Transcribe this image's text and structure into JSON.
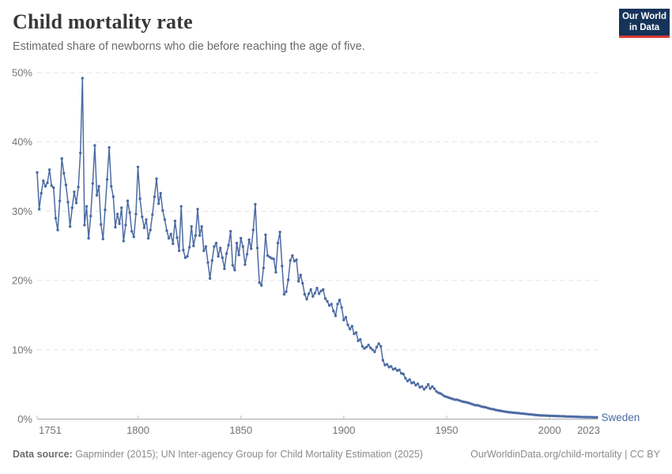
{
  "header": {
    "title": "Child mortality rate",
    "subtitle": "Estimated share of newborns who die before reaching the age of five."
  },
  "logo": {
    "line1": "Our World",
    "line2": "in Data",
    "bg_color": "#16335a",
    "accent_color": "#d93a35"
  },
  "chart_data": {
    "type": "line",
    "title": "Child mortality rate",
    "entity": "Sweden",
    "line_color": "#4c6ba3",
    "marker": "dot",
    "grid": "horizontal-dashed",
    "series_label_position": "end-of-line",
    "x_start_year": 1751,
    "x_end_year": 2023,
    "x_frequency": "annual",
    "xticks": [
      1751,
      1800,
      1850,
      1900,
      1950,
      2000,
      2023
    ],
    "ylim": [
      0,
      50
    ],
    "yticks": [
      {
        "value": 0,
        "label": "0%"
      },
      {
        "value": 10,
        "label": "10%"
      },
      {
        "value": 20,
        "label": "20%"
      },
      {
        "value": 30,
        "label": "30%"
      },
      {
        "value": 40,
        "label": "40%"
      },
      {
        "value": 50,
        "label": "50%"
      }
    ],
    "values": [
      35.6,
      30.3,
      32.6,
      34.4,
      33.6,
      34.1,
      36,
      33.7,
      33.4,
      29,
      27.3,
      31.5,
      37.6,
      35.5,
      33.8,
      31.3,
      27.8,
      30.5,
      32.8,
      31.2,
      33.5,
      38.4,
      49.2,
      28,
      30.7,
      26.1,
      29.3,
      34,
      39.5,
      32.3,
      33.6,
      28.1,
      26,
      30.2,
      34.6,
      39.2,
      33.6,
      32.1,
      27.7,
      29.6,
      28.2,
      30.5,
      25.7,
      28,
      31.5,
      29.8,
      27.1,
      26.3,
      29.6,
      36.4,
      31.8,
      29.2,
      27.6,
      28.8,
      26.1,
      27.3,
      29.5,
      32.1,
      34.7,
      31.1,
      32.6,
      30.1,
      28.8,
      27.2,
      26.1,
      26.7,
      25.3,
      28.6,
      26.2,
      24.3,
      30.7,
      24.4,
      23.3,
      23.5,
      24.8,
      27.8,
      25,
      26.5,
      30.3,
      26.5,
      27.8,
      24.3,
      24.9,
      22.6,
      20.3,
      22.9,
      24.9,
      25.4,
      23.5,
      24.7,
      23.3,
      21.7,
      23.9,
      25.1,
      27.1,
      22.2,
      21.5,
      25.4,
      23.7,
      26.1,
      24.9,
      22.3,
      23.8,
      25.9,
      24.6,
      27.3,
      31,
      24.7,
      19.7,
      19.3,
      21.8,
      26.6,
      23.6,
      23.4,
      23.2,
      23.1,
      21.2,
      25.4,
      27,
      22.1,
      18,
      18.4,
      20.1,
      22.9,
      23.6,
      22.8,
      23,
      19.9,
      20.8,
      19.6,
      18,
      17.3,
      18.1,
      18.7,
      17.7,
      18.2,
      18.9,
      18.1,
      18.5,
      18.7,
      17.4,
      17,
      16.4,
      16.6,
      15.6,
      14.9,
      16.6,
      17.2,
      16.1,
      14.3,
      14.7,
      13.6,
      13,
      13.4,
      12.3,
      12.5,
      11.3,
      11.5,
      10.5,
      10.2,
      10.4,
      10.7,
      10.3,
      10,
      9.7,
      10.4,
      10.9,
      10.5,
      8.5,
      7.8,
      7.9,
      7.5,
      7.6,
      7.2,
      7.3,
      7,
      7.1,
      6.6,
      6.5,
      5.9,
      5.5,
      5.7,
      5.2,
      5.3,
      4.9,
      5.1,
      4.6,
      4.7,
      4.3,
      4.6,
      5,
      4.4,
      4.7,
      4.4,
      4,
      3.8,
      3.7,
      3.5,
      3.3,
      3.2,
      3.1,
      3,
      2.9,
      2.8,
      2.8,
      2.7,
      2.6,
      2.5,
      2.45,
      2.4,
      2.3,
      2.2,
      2.1,
      2,
      2,
      1.9,
      1.8,
      1.75,
      1.7,
      1.6,
      1.5,
      1.45,
      1.4,
      1.3,
      1.25,
      1.2,
      1.15,
      1.1,
      1.05,
      1,
      0.97,
      0.94,
      0.91,
      0.88,
      0.85,
      0.82,
      0.79,
      0.76,
      0.73,
      0.7,
      0.67,
      0.64,
      0.61,
      0.58,
      0.55,
      0.53,
      0.52,
      0.5,
      0.49,
      0.48,
      0.47,
      0.46,
      0.44,
      0.43,
      0.42,
      0.41,
      0.4,
      0.38,
      0.37,
      0.36,
      0.35,
      0.34,
      0.33,
      0.32,
      0.31,
      0.3,
      0.29,
      0.28,
      0.28,
      0.27,
      0.26,
      0.26,
      0.25
    ]
  },
  "footer": {
    "datasource_label": "Data source:",
    "datasource_text": " Gapminder (2015); UN Inter-agency Group for Child Mortality Estimation (2025)",
    "link_text": "OurWorldinData.org/child-mortality | CC BY"
  }
}
